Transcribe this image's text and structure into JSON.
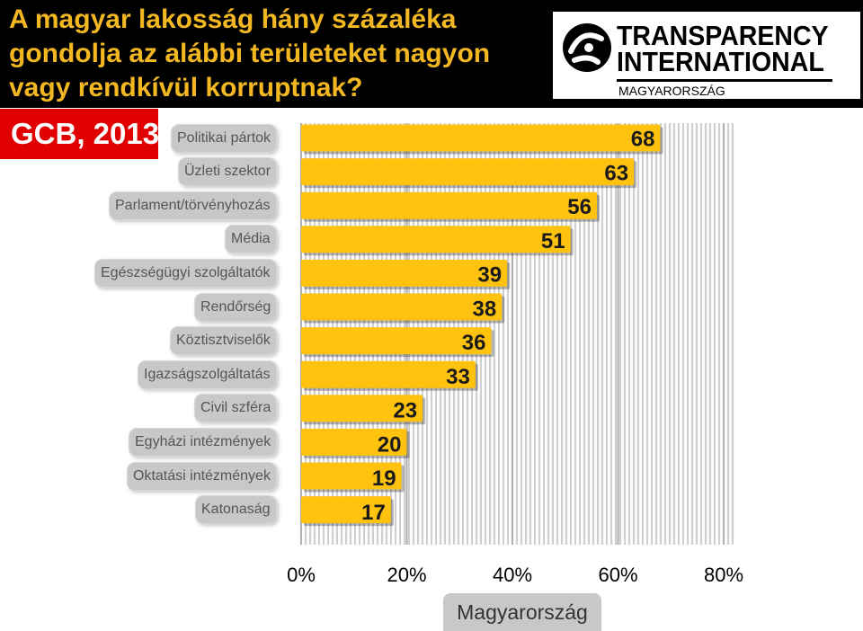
{
  "header": {
    "title": "A magyar lakosság hány százaléka gondolja az alábbi területeket nagyon vagy rendkívül korruptnak?",
    "badge": "GCB, 2013"
  },
  "logo": {
    "line1": "TRANSPARENCY",
    "line2": "INTERNATIONAL",
    "subtitle": "MAGYARORSZÁG"
  },
  "colors": {
    "bar": "#ffc20e",
    "title": "#f3b821",
    "badge": "#e00000",
    "header_background": "#000000",
    "label_pill": "#c8c8c8"
  },
  "chart_data": {
    "type": "bar",
    "orientation": "horizontal",
    "categories": [
      "Politikai pártok",
      "Üzleti szektor",
      "Parlament/törvényhozás",
      "Média",
      "Egészségügyi szolgáltatók",
      "Rendőrség",
      "Köztisztviselők",
      "Igazságszolgáltatás",
      "Civil szféra",
      "Egyházi intézmények",
      "Oktatási intézmények",
      "Katonaság"
    ],
    "values": [
      68,
      63,
      56,
      51,
      39,
      38,
      36,
      33,
      23,
      20,
      19,
      17
    ],
    "tick_labels": [
      "0%",
      "20%",
      "40%",
      "60%",
      "80%"
    ],
    "xlim": [
      0,
      80
    ],
    "xlabel": "Magyarország",
    "grid": true
  }
}
